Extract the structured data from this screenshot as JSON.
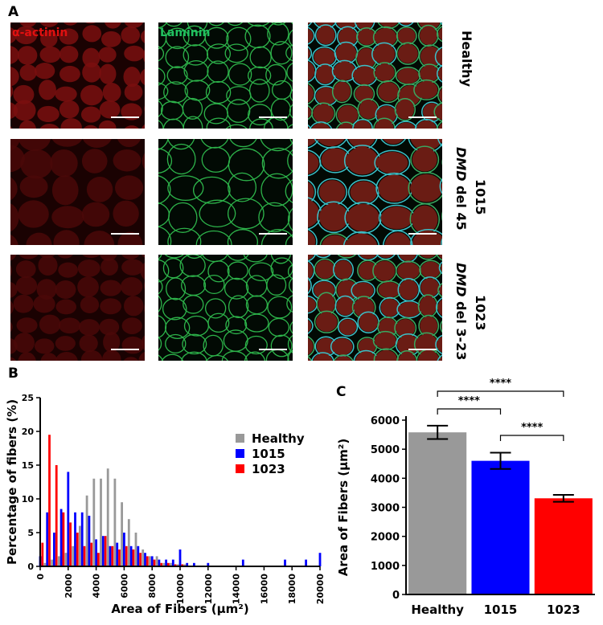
{
  "panel_a": {
    "label": "A",
    "columns": [
      "α-actinin",
      "Laminin"
    ],
    "rows": [
      {
        "sample": "Healthy"
      },
      {
        "sample": "1015",
        "gene": "DMD",
        "deletion": " del 45"
      },
      {
        "sample": "1023",
        "gene": "DMD",
        "deletion": " del 3-23"
      }
    ]
  },
  "chart_data": [
    {
      "type": "histogram",
      "panel_label": "B",
      "x_label": "Area of Fibers (µm²)",
      "y_label": "Percentage of fibers (%)",
      "x": [
        0,
        500,
        1000,
        1500,
        2000,
        2500,
        3000,
        3500,
        4000,
        4500,
        5000,
        5500,
        6000,
        6500,
        7000,
        7500,
        8000,
        8500,
        9000,
        9500,
        10000,
        10500,
        11000,
        11500,
        12000,
        12500,
        13000,
        13500,
        14000,
        14500,
        15000,
        15500,
        16000,
        16500,
        17000,
        17500,
        18000,
        18500,
        19000,
        19500,
        20000
      ],
      "series": [
        {
          "name": "Healthy",
          "color": "#999999",
          "values": [
            0,
            0.5,
            1,
            1.5,
            2,
            3,
            6,
            10.5,
            13,
            13,
            14.5,
            13,
            9.5,
            7,
            5,
            2.5,
            1.5,
            1.5,
            0.5,
            0.5,
            0.3,
            0.3,
            0,
            0,
            0,
            0,
            0,
            0,
            0,
            0,
            0,
            0,
            0,
            0,
            0,
            0,
            0,
            0,
            0,
            0,
            0
          ]
        },
        {
          "name": "1015",
          "color": "#0000ff",
          "values": [
            1.5,
            8,
            5,
            8.5,
            14,
            8,
            8,
            7.5,
            4,
            4.5,
            3,
            3.5,
            5,
            3,
            3,
            2,
            1.5,
            1,
            1,
            1,
            2.5,
            0.5,
            0.5,
            0,
            0.5,
            0,
            0,
            0,
            0,
            1,
            0,
            0,
            0,
            0,
            0,
            1,
            0,
            0,
            1,
            0,
            2
          ]
        },
        {
          "name": "1023",
          "color": "#ff0000",
          "values": [
            3.5,
            19.5,
            15,
            8,
            6.5,
            5,
            3,
            3.5,
            2,
            4.5,
            3,
            2.5,
            3,
            2.5,
            2,
            1.5,
            1,
            0.5,
            0.5,
            0.3,
            0.3,
            0,
            0,
            0,
            0,
            0,
            0,
            0,
            0,
            0,
            0,
            0,
            0,
            0,
            0,
            0,
            0,
            0,
            0,
            0,
            0
          ]
        }
      ],
      "xlim": [
        0,
        20000
      ],
      "xticks": [
        0,
        2000,
        4000,
        6000,
        8000,
        10000,
        12000,
        14000,
        16000,
        18000,
        20000
      ],
      "ylim": [
        0,
        25
      ],
      "yticks": [
        0,
        5,
        10,
        15,
        20,
        25
      ],
      "legend": "upper right"
    },
    {
      "type": "bar",
      "panel_label": "C",
      "y_label": "Area of Fibers (µm²)",
      "categories": [
        "Healthy",
        "1015",
        "1023"
      ],
      "values": [
        5580,
        4600,
        3310
      ],
      "errors": [
        230,
        280,
        120
      ],
      "colors": [
        "#999999",
        "#0000ff",
        "#ff0000"
      ],
      "ylim": [
        0,
        6000
      ],
      "yticks": [
        0,
        1000,
        2000,
        3000,
        4000,
        5000,
        6000
      ],
      "annotations": [
        "****",
        "****",
        "****"
      ]
    }
  ]
}
